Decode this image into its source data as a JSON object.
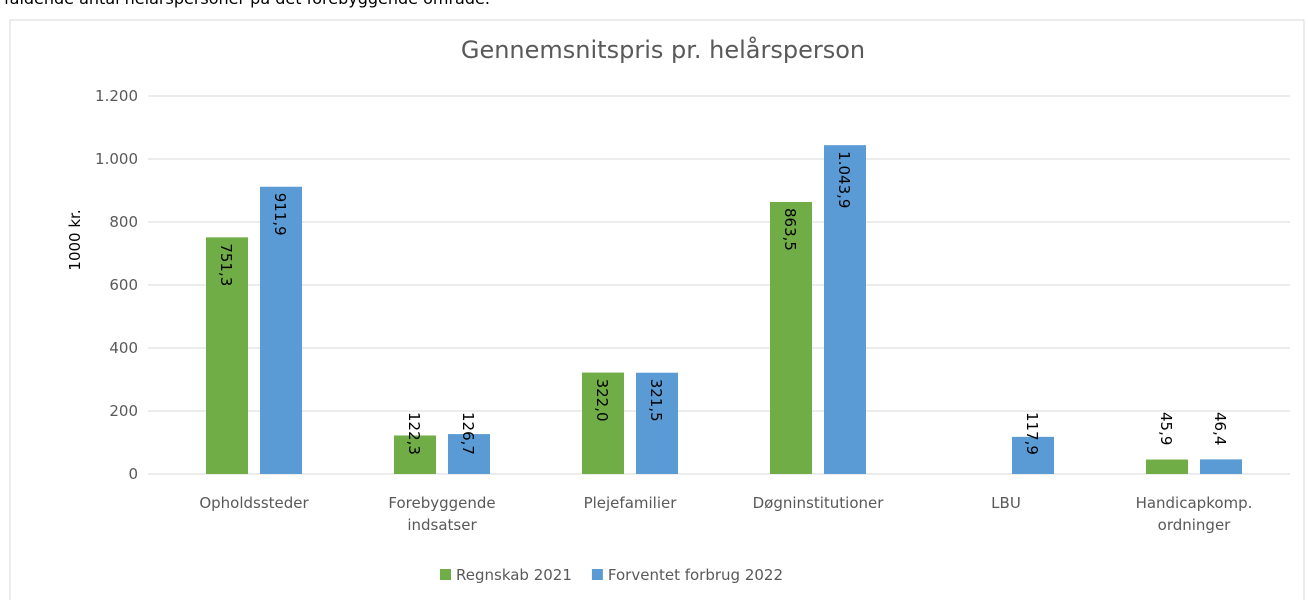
{
  "intro_text": "faldende antal helårspersoner på det forebyggende område.",
  "chart_data": {
    "type": "bar",
    "title": "Gennemsnitspris pr. helårsperson",
    "y_label": "1000 kr.",
    "categories": [
      "Opholdssteder",
      "Forebyggende indsatser",
      "Plejefamilier",
      "Døgninstitutioner",
      "LBU",
      "Handicapkomp. ordninger"
    ],
    "series": [
      {
        "name": "Regnskab 2021",
        "color": "#70ad47",
        "values": [
          751.3,
          122.3,
          322.0,
          863.5,
          null,
          45.9
        ],
        "value_labels": [
          "751,3",
          "122,3",
          "322,0",
          "863,5",
          null,
          "45,9"
        ]
      },
      {
        "name": "Forventet forbrug 2022",
        "color": "#5b9bd5",
        "values": [
          911.9,
          126.7,
          321.5,
          1043.9,
          117.9,
          46.4
        ],
        "value_labels": [
          "911,9",
          "126,7",
          "321,5",
          "1.043,9",
          "117,9",
          "46,4"
        ]
      }
    ],
    "ylim": [
      0,
      1200
    ],
    "yticks": [
      0,
      200,
      400,
      600,
      800,
      {
        "value": 1000,
        "label": "1.000"
      },
      {
        "value": 1200,
        "label": "1.200"
      }
    ],
    "grid": true,
    "legend": "bottom"
  }
}
